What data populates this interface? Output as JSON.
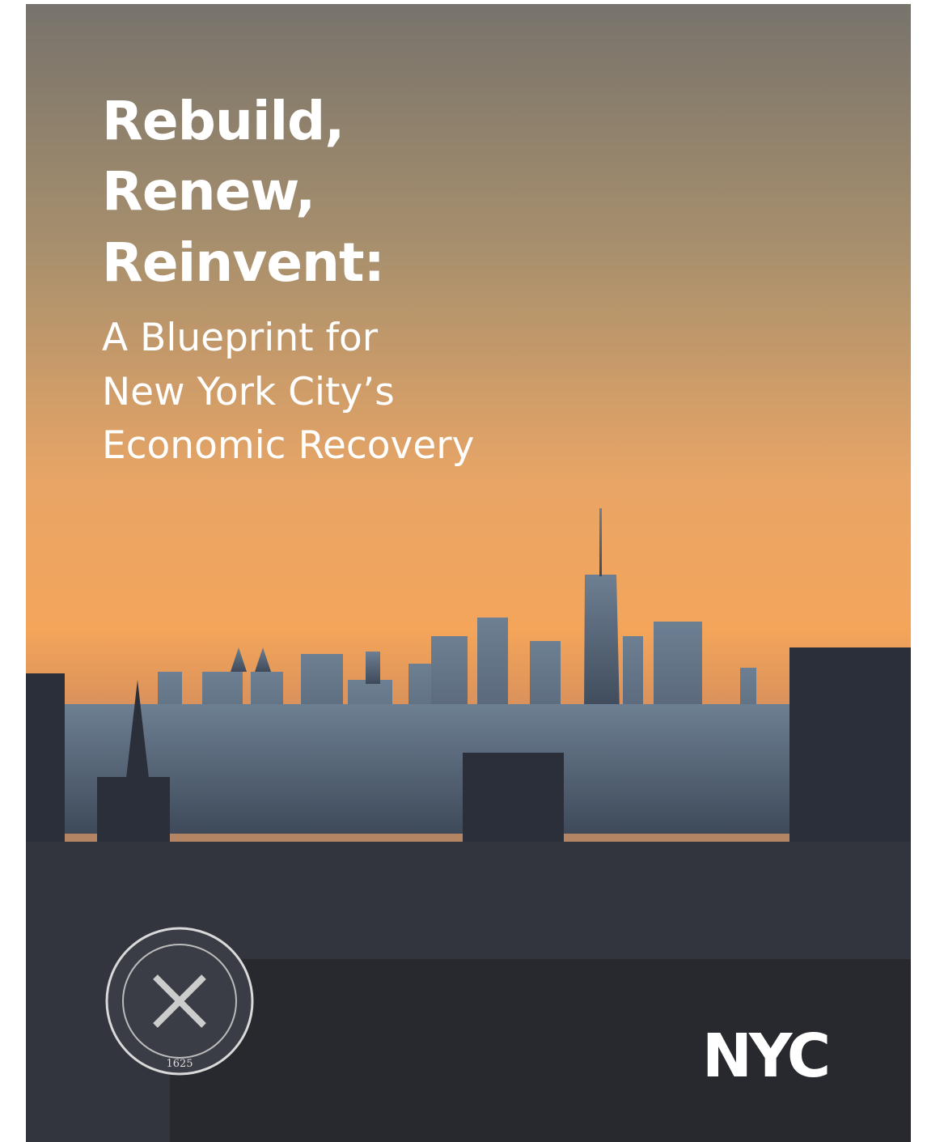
{
  "cover": {
    "title": [
      "Rebuild,",
      "Renew,",
      "Reinvent:"
    ],
    "subtitle": [
      "A Blueprint for",
      "New York City’s",
      "Economic Recovery"
    ],
    "seal_year": "1625",
    "logo": "NYC"
  }
}
